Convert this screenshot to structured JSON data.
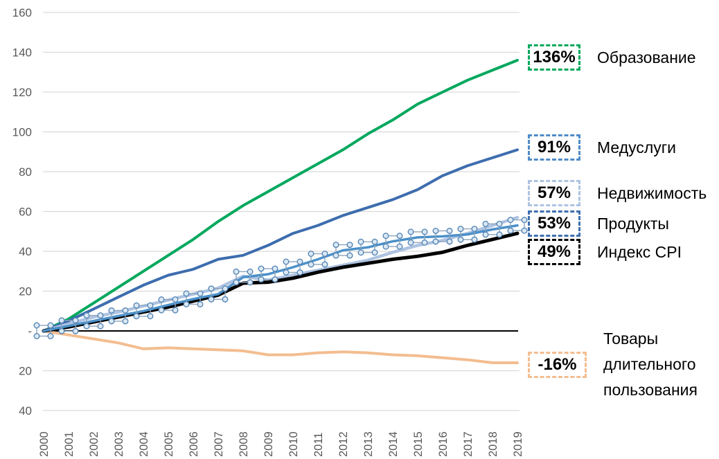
{
  "chart_data": {
    "type": "line",
    "title": "",
    "x": [
      2000,
      2001,
      2002,
      2003,
      2004,
      2005,
      2006,
      2007,
      2008,
      2009,
      2010,
      2011,
      2012,
      2013,
      2014,
      2015,
      2016,
      2017,
      2018,
      2019
    ],
    "x_labels": [
      "2000",
      "2001",
      "2002",
      "2003",
      "2004",
      "2005",
      "2006",
      "2007",
      "2008",
      "2009",
      "2010",
      "2011",
      "2012",
      "2013",
      "2014",
      "2015",
      "2016",
      "2017",
      "2018",
      "2019"
    ],
    "y_axis": {
      "ticks": [
        160,
        140,
        120,
        100,
        80,
        60,
        40,
        20,
        0,
        -20,
        -40
      ],
      "tick_labels": [
        "160",
        "140",
        "120",
        "100",
        "80",
        "60",
        "40",
        "20",
        "-",
        "20",
        "40"
      ],
      "range": [
        -40,
        160
      ]
    },
    "grid": true,
    "legend_position": "right",
    "series": [
      {
        "id": "education",
        "name": "Образование",
        "final_label": "136%",
        "color": "#00a85d",
        "label_box_color": "#00a85d",
        "selected_markers": false,
        "values": [
          0,
          6,
          14,
          22,
          30,
          38,
          46,
          55,
          63,
          70,
          77,
          84,
          91,
          99,
          106,
          114,
          120,
          126,
          131,
          136
        ]
      },
      {
        "id": "medical-services",
        "name": "Медуслуги",
        "final_label": "91%",
        "color": "#3d6dae",
        "label_box_color": "#4e8bc8",
        "selected_markers": false,
        "values": [
          0,
          5,
          11,
          17,
          23,
          28,
          31,
          36,
          38,
          43,
          49,
          53,
          58,
          62,
          66,
          71,
          78,
          83,
          87,
          91
        ]
      },
      {
        "id": "real-estate",
        "name": "Недвижимость",
        "final_label": "57%",
        "color": "#aec3e2",
        "label_box_color": "#aec3e2",
        "selected_markers": false,
        "values": [
          0,
          3.5,
          7,
          9.5,
          12.5,
          15.5,
          18.5,
          21.5,
          27.5,
          25.5,
          28,
          30.5,
          33,
          35.5,
          39.5,
          43,
          45.5,
          49,
          53,
          57
        ]
      },
      {
        "id": "groceries",
        "name": "Продукты",
        "final_label": "53%",
        "color": "#4a90c9",
        "label_box_color": "#3e6fb0",
        "selected_markers": true,
        "values": [
          0,
          2.5,
          5,
          7.5,
          10,
          13,
          16,
          18.5,
          27,
          28.5,
          32,
          36,
          40.5,
          42,
          45,
          47,
          47.5,
          48.5,
          51,
          53
        ]
      },
      {
        "id": "cpi-index",
        "name": "Индекс CPI",
        "final_label": "49%",
        "color": "#000000",
        "label_box_color": "#000000",
        "selected_markers": false,
        "values": [
          0,
          2,
          4.5,
          7,
          9.5,
          12,
          15,
          18,
          24,
          24.5,
          26.5,
          29.5,
          32,
          34,
          36,
          37.5,
          39.5,
          43,
          46,
          49
        ]
      },
      {
        "id": "durable-goods",
        "name": "Товары длительного пользования",
        "final_label": "-16%",
        "color": "#f3bd90",
        "label_box_color": "#f3bd90",
        "selected_markers": false,
        "values": [
          0,
          -2,
          -4,
          -6,
          -9,
          -8.5,
          -9,
          -9.5,
          -10,
          -12,
          -12,
          -11,
          -10.5,
          -11,
          -12,
          -12.5,
          -13.5,
          -14.5,
          -16,
          -16
        ]
      }
    ]
  }
}
